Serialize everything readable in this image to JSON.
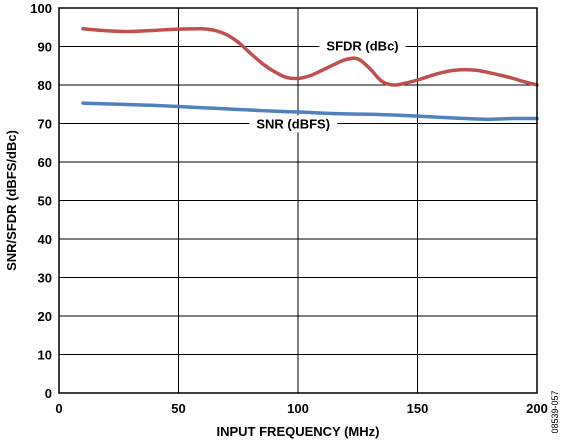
{
  "chart_data": {
    "type": "line",
    "title": "",
    "xlabel": "INPUT FREQUENCY (MHz)",
    "ylabel": "SNR/SFDR (dBFS/dBc)",
    "xlim": [
      0,
      200
    ],
    "ylim": [
      0,
      100
    ],
    "xticks": [
      0,
      50,
      100,
      150,
      200
    ],
    "yticks": [
      0,
      10,
      20,
      30,
      40,
      50,
      60,
      70,
      80,
      90,
      100
    ],
    "grid": true,
    "figure_id": "08539-057",
    "series": [
      {
        "name": "SFDR (dBc)",
        "color": "#c0504d",
        "x": [
          10,
          20,
          30,
          40,
          50,
          60,
          65,
          70,
          75,
          80,
          85,
          90,
          95,
          100,
          105,
          110,
          115,
          120,
          125,
          130,
          135,
          140,
          145,
          150,
          155,
          160,
          165,
          170,
          175,
          180,
          185,
          190,
          195,
          200
        ],
        "y": [
          94.6,
          94.1,
          93.9,
          94.2,
          94.5,
          94.6,
          94.2,
          93.1,
          91.1,
          88.3,
          85.6,
          83.5,
          82.0,
          81.7,
          82.4,
          83.8,
          85.3,
          86.6,
          86.8,
          84.3,
          81.0,
          80.0,
          80.5,
          81.3,
          82.3,
          83.2,
          83.8,
          84.0,
          83.8,
          83.2,
          82.5,
          81.7,
          80.8,
          80.0
        ]
      },
      {
        "name": "SNR (dBFS)",
        "color": "#4f81bd",
        "x": [
          10,
          20,
          30,
          40,
          50,
          60,
          70,
          80,
          90,
          100,
          110,
          120,
          130,
          140,
          150,
          160,
          170,
          180,
          190,
          200
        ],
        "y": [
          75.3,
          75.1,
          74.9,
          74.7,
          74.4,
          74.1,
          73.8,
          73.5,
          73.2,
          73.0,
          72.7,
          72.5,
          72.4,
          72.2,
          71.9,
          71.6,
          71.3,
          71.1,
          71.3,
          71.3
        ]
      }
    ]
  }
}
